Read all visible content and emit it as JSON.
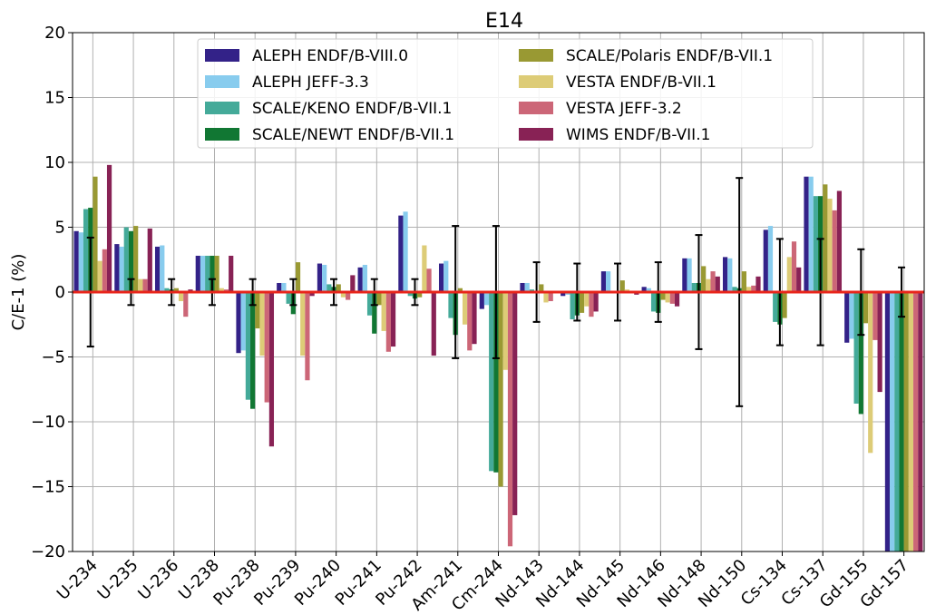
{
  "chart_data": {
    "type": "bar",
    "title": "E14",
    "xlabel": "",
    "ylabel": "C/E-1 (%)",
    "ylim": [
      -20,
      20
    ],
    "yticks": [
      -20,
      -15,
      -10,
      -5,
      0,
      5,
      10,
      15,
      20
    ],
    "ytick_labels": [
      "−20",
      "−15",
      "−10",
      "−5",
      "0",
      "5",
      "10",
      "15",
      "20"
    ],
    "grid": true,
    "legend_position": "top-center",
    "reference_line": {
      "y": 0,
      "color": "#e8251b"
    },
    "categories": [
      "U-234",
      "U-235",
      "U-236",
      "U-238",
      "Pu-238",
      "Pu-239",
      "Pu-240",
      "Pu-241",
      "Pu-242",
      "Am-241",
      "Cm-244",
      "Nd-143",
      "Nd-144",
      "Nd-145",
      "Nd-146",
      "Nd-148",
      "Nd-150",
      "Cs-134",
      "Cs-137",
      "Gd-155",
      "Gd-157"
    ],
    "series": [
      {
        "name": "ALEPH ENDF/B-VIII.0",
        "color": "#332288",
        "values": [
          4.7,
          3.7,
          3.5,
          2.8,
          -4.7,
          0.7,
          2.2,
          1.9,
          5.9,
          2.2,
          -1.3,
          0.7,
          -0.3,
          1.6,
          0.4,
          2.6,
          2.7,
          4.8,
          8.9,
          -3.9,
          -20.5
        ]
      },
      {
        "name": "ALEPH JEFF-3.3",
        "color": "#88ccee",
        "values": [
          4.6,
          3.5,
          3.6,
          2.8,
          -4.5,
          0.7,
          2.1,
          2.1,
          6.2,
          2.4,
          -1.0,
          0.7,
          -0.2,
          1.6,
          0.3,
          2.6,
          2.6,
          5.1,
          8.9,
          -3.6,
          -20.5
        ]
      },
      {
        "name": "SCALE/KENO ENDF/B-VII.1",
        "color": "#44aa99",
        "values": [
          6.4,
          5.0,
          0.3,
          2.8,
          -8.3,
          -0.9,
          0.6,
          -1.8,
          -0.3,
          -2.0,
          -13.8,
          0.2,
          -2.1,
          0.1,
          -1.5,
          0.7,
          0.4,
          -2.3,
          7.4,
          -8.6,
          -20.5
        ]
      },
      {
        "name": "SCALE/NEWT ENDF/B-VII.1",
        "color": "#117733",
        "values": [
          6.5,
          4.7,
          0.2,
          2.8,
          -9.0,
          -1.7,
          0.4,
          -3.2,
          -0.5,
          -3.3,
          -13.9,
          0.1,
          -1.8,
          0.0,
          -1.6,
          0.7,
          0.3,
          -2.5,
          7.4,
          -9.4,
          -20.5
        ]
      },
      {
        "name": "SCALE/Polaris ENDF/B-VII.1",
        "color": "#999933",
        "values": [
          8.9,
          5.1,
          0.3,
          2.8,
          -2.8,
          2.3,
          0.6,
          -1.0,
          -0.4,
          0.3,
          -15.0,
          0.6,
          -1.6,
          0.9,
          -0.6,
          2.0,
          1.6,
          -2.0,
          8.3,
          -2.4,
          -20.5
        ]
      },
      {
        "name": "VESTA ENDF/B-VII.1",
        "color": "#ddcc77",
        "values": [
          2.4,
          1.0,
          -0.7,
          0.3,
          -4.9,
          -4.9,
          -0.4,
          -3.0,
          3.6,
          -2.5,
          -6.0,
          -0.8,
          -1.1,
          0.2,
          -0.8,
          1.0,
          0.4,
          2.7,
          7.2,
          -12.4,
          -20.5
        ]
      },
      {
        "name": "VESTA JEFF-3.2",
        "color": "#cc6677",
        "values": [
          3.3,
          1.0,
          -1.9,
          0.2,
          -8.5,
          -6.8,
          -0.6,
          -4.6,
          1.8,
          -4.5,
          -19.6,
          -0.7,
          -1.9,
          -0.1,
          -0.9,
          1.6,
          0.5,
          3.9,
          6.3,
          -3.7,
          -20.5
        ]
      },
      {
        "name": "WIMS ENDF/B-VII.1",
        "color": "#882255",
        "values": [
          9.8,
          4.9,
          0.2,
          2.8,
          -11.9,
          -0.3,
          1.3,
          -4.2,
          -4.9,
          -4.0,
          -17.2,
          0.0,
          -1.5,
          -0.2,
          -1.1,
          1.2,
          1.2,
          1.9,
          7.8,
          -7.7,
          -20.5
        ]
      }
    ],
    "error_bars": [
      4.2,
      1.0,
      1.0,
      1.0,
      1.0,
      1.0,
      1.0,
      1.0,
      1.0,
      5.1,
      5.1,
      2.3,
      2.2,
      2.2,
      2.3,
      4.4,
      8.8,
      4.1,
      4.1,
      3.3,
      1.9
    ]
  }
}
